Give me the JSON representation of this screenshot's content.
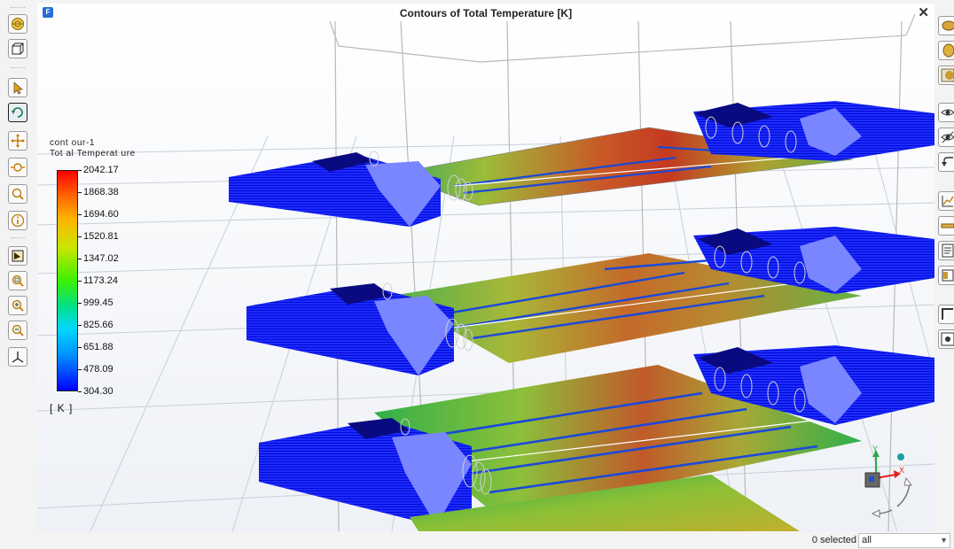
{
  "window": {
    "title": "Contours of Total Temperature [K]",
    "close_glyph": "✕"
  },
  "legend": {
    "name": "cont our-1",
    "quantity": "Tot al Temperat ure",
    "unit": "[ K ]",
    "values": [
      "2042.17",
      "1868.38",
      "1694.60",
      "1520.81",
      "1347.02",
      "1173.24",
      "999.45",
      "825.66",
      "651.88",
      "478.09",
      "304.30"
    ]
  },
  "triad": {
    "x_label": "X",
    "y_label": "Y"
  },
  "status": {
    "selected_text": "0 selected",
    "filter_value": "all"
  },
  "left_toolbar": [
    "sphere-view-icon",
    "cube-view-icon",
    "pointer-icon",
    "rotate-icon",
    "pan-icon",
    "zoom-in-out-icon",
    "zoom-icon",
    "info-icon",
    "probe-icon",
    "zoom-box-icon",
    "zoom-plus-icon",
    "zoom-minus-icon",
    "axes-icon"
  ],
  "right_toolbar": [
    "clip-plane-icon",
    "cylinder-icon",
    "texture-icon",
    "eye-icon",
    "eye-hidden-icon",
    "undo-view-icon",
    "chart-icon",
    "ruler-icon",
    "report-icon",
    "book-icon",
    "frame-icon",
    "point-icon"
  ],
  "colors": {
    "accent": "#2a6fd6",
    "toolbar_bg": "#f3f3f3"
  }
}
